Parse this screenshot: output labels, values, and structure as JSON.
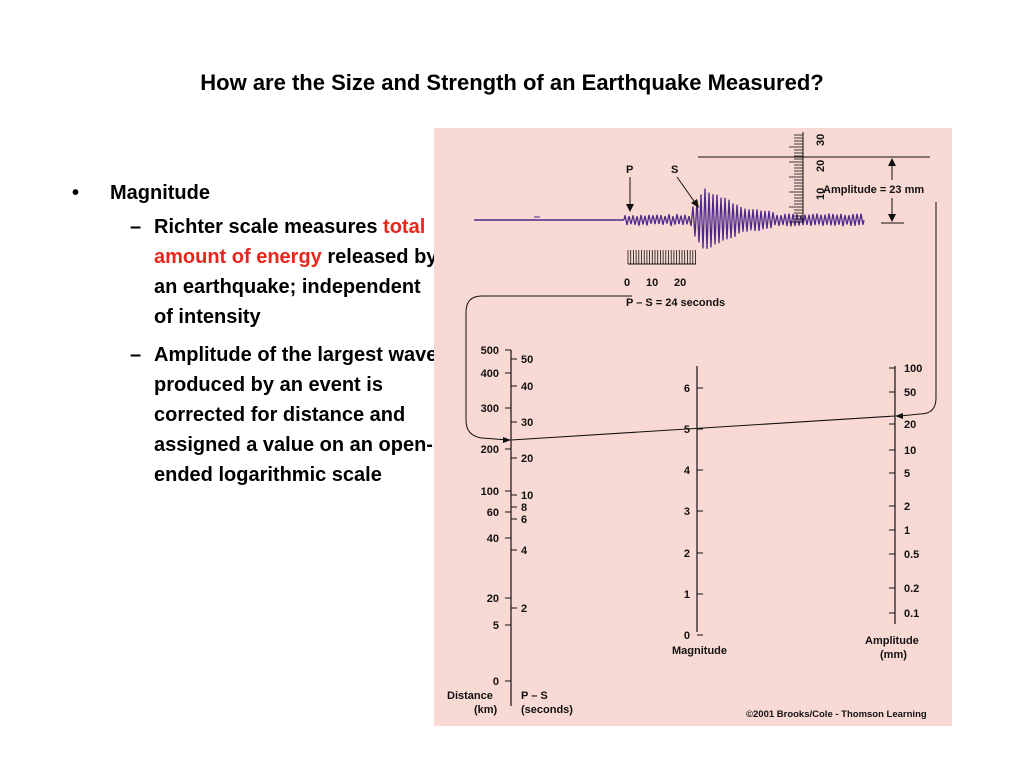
{
  "title": "How are the Size and Strength of an Earthquake Measured?",
  "bullet": {
    "label": "Magnitude",
    "subs": [
      {
        "pre": "Richter scale measures ",
        "highlight": "total amount of energy",
        "post": " released by an earthquake; independent of intensity"
      },
      {
        "text": "Amplitude of the largest wave produced by an event is corrected for distance and assigned a value on an open-ended logarithmic scale"
      }
    ]
  },
  "figure": {
    "background": "#f9d9d3",
    "wave_color": "#4b2a8a",
    "p_label": "P",
    "s_label": "S",
    "time_ticks": [
      "0",
      "10",
      "20"
    ],
    "ps_caption": "P – S = 24 seconds",
    "ruler_ticks": [
      "10",
      "20",
      "30"
    ],
    "amplitude_caption": "Amplitude = 23 mm",
    "distance_ticks": [
      "500",
      "400",
      "300",
      "200",
      "100",
      "60",
      "40",
      "20",
      "5",
      "0"
    ],
    "ps_ticks": [
      "50",
      "40",
      "30",
      "20",
      "10",
      "8",
      "6",
      "4",
      "2"
    ],
    "distance_label_1": "Distance",
    "distance_label_2": "(km)",
    "ps_label_1": "P – S",
    "ps_label_2": "(seconds)",
    "magnitude_ticks": [
      "6",
      "5",
      "4",
      "3",
      "2",
      "1",
      "0"
    ],
    "magnitude_label": "Magnitude",
    "amplitude_ticks": [
      "100",
      "50",
      "20",
      "10",
      "5",
      "2",
      "1",
      "0.5",
      "0.2",
      "0.1"
    ],
    "amplitude_label_1": "Amplitude",
    "amplitude_label_2": "(mm)",
    "copyright": "©2001 Brooks/Cole - Thomson Learning"
  }
}
